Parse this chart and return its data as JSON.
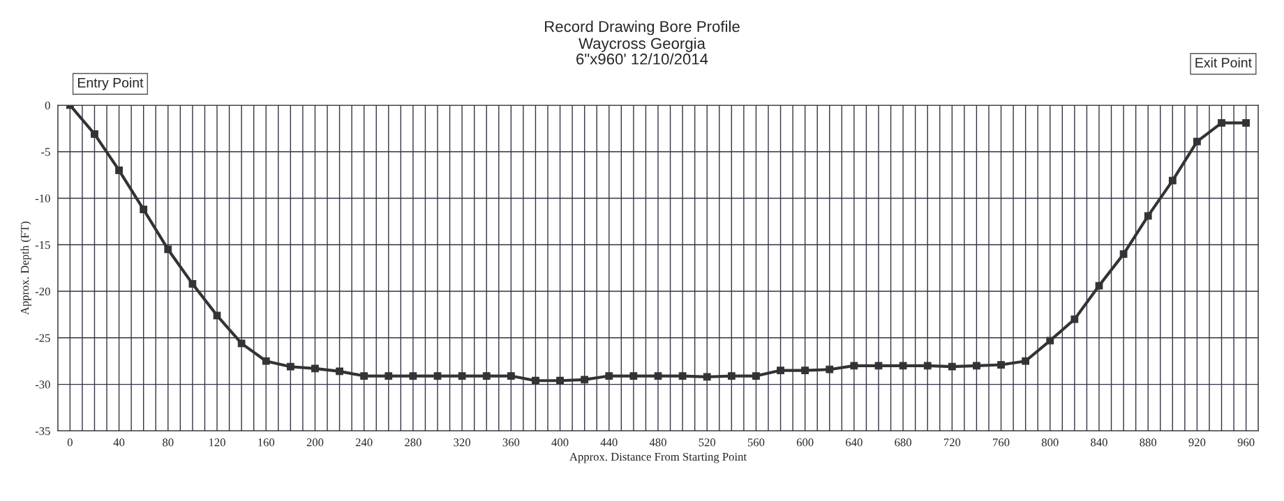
{
  "chart_data": {
    "type": "line",
    "title": "Record Drawing Bore Profile",
    "subtitle": "Waycross Georgia\n6\"x960' 12/10/2014",
    "xlabel": "Approx. Distance From Starting Point",
    "ylabel": "Approx. Depth (FT)",
    "annotations": [
      "Entry Point",
      "Exit Point"
    ],
    "x": [
      0,
      20,
      40,
      60,
      80,
      100,
      120,
      140,
      160,
      180,
      200,
      220,
      240,
      260,
      280,
      300,
      320,
      340,
      360,
      380,
      400,
      420,
      440,
      460,
      480,
      500,
      520,
      540,
      560,
      580,
      600,
      620,
      640,
      660,
      680,
      700,
      720,
      740,
      760,
      780,
      800,
      820,
      840,
      860,
      880,
      900,
      920,
      940,
      960
    ],
    "series": [
      {
        "color": "#333333",
        "values": [
          0,
          -3.1,
          -7,
          -11.2,
          -15.5,
          -19.2,
          -22.6,
          -25.6,
          -27.5,
          -28.1,
          -28.3,
          -28.6,
          -29.1,
          -29.1,
          -29.1,
          -29.1,
          -29.1,
          -29.1,
          -29.1,
          -29.6,
          -29.6,
          -29.5,
          -29.1,
          -29.1,
          -29.1,
          -29.1,
          -29.2,
          -29.1,
          -29.1,
          -28.5,
          -28.5,
          -28.4,
          -28,
          -28,
          -28,
          -28,
          -28.1,
          -28,
          -27.9,
          -27.5,
          -25.3,
          -23,
          -19.4,
          -16,
          -11.9,
          -8.1,
          -3.9,
          -1.9,
          -1.9
        ]
      }
    ],
    "xlim": [
      -10,
      970
    ],
    "ylim": [
      -35,
      0
    ],
    "xticks": [
      {
        "value": -10,
        "label": null
      },
      0,
      {
        "value": 10,
        "label": null
      },
      {
        "value": 20,
        "label": null
      },
      {
        "value": 30,
        "label": null
      },
      40,
      {
        "value": 50,
        "label": null
      },
      {
        "value": 60,
        "label": null
      },
      {
        "value": 70,
        "label": null
      },
      80,
      {
        "value": 90,
        "label": null
      },
      {
        "value": 100,
        "label": null
      },
      {
        "value": 110,
        "label": null
      },
      120,
      {
        "value": 130,
        "label": null
      },
      {
        "value": 140,
        "label": null
      },
      {
        "value": 150,
        "label": null
      },
      160,
      {
        "value": 170,
        "label": null
      },
      {
        "value": 180,
        "label": null
      },
      {
        "value": 190,
        "label": null
      },
      200,
      {
        "value": 210,
        "label": null
      },
      {
        "value": 220,
        "label": null
      },
      {
        "value": 230,
        "label": null
      },
      240,
      {
        "value": 250,
        "label": null
      },
      {
        "value": 260,
        "label": null
      },
      {
        "value": 270,
        "label": null
      },
      280,
      {
        "value": 290,
        "label": null
      },
      {
        "value": 300,
        "label": null
      },
      {
        "value": 310,
        "label": null
      },
      320,
      {
        "value": 330,
        "label": null
      },
      {
        "value": 340,
        "label": null
      },
      {
        "value": 350,
        "label": null
      },
      360,
      {
        "value": 370,
        "label": null
      },
      {
        "value": 380,
        "label": null
      },
      {
        "value": 390,
        "label": null
      },
      400,
      {
        "value": 410,
        "label": null
      },
      {
        "value": 420,
        "label": null
      },
      {
        "value": 430,
        "label": null
      },
      440,
      {
        "value": 450,
        "label": null
      },
      {
        "value": 460,
        "label": null
      },
      {
        "value": 470,
        "label": null
      },
      480,
      {
        "value": 490,
        "label": null
      },
      {
        "value": 500,
        "label": null
      },
      {
        "value": 510,
        "label": null
      },
      520,
      {
        "value": 530,
        "label": null
      },
      {
        "value": 540,
        "label": null
      },
      {
        "value": 550,
        "label": null
      },
      560,
      {
        "value": 570,
        "label": null
      },
      {
        "value": 580,
        "label": null
      },
      {
        "value": 590,
        "label": null
      },
      600,
      {
        "value": 610,
        "label": null
      },
      {
        "value": 620,
        "label": null
      },
      {
        "value": 630,
        "label": null
      },
      640,
      {
        "value": 650,
        "label": null
      },
      {
        "value": 660,
        "label": null
      },
      {
        "value": 670,
        "label": null
      },
      680,
      {
        "value": 690,
        "label": null
      },
      {
        "value": 700,
        "label": null
      },
      {
        "value": 710,
        "label": null
      },
      720,
      {
        "value": 730,
        "label": null
      },
      {
        "value": 740,
        "label": null
      },
      {
        "value": 750,
        "label": null
      },
      760,
      {
        "value": 770,
        "label": null
      },
      {
        "value": 780,
        "label": null
      },
      {
        "value": 790,
        "label": null
      },
      800,
      {
        "value": 810,
        "label": null
      },
      {
        "value": 820,
        "label": null
      },
      {
        "value": 830,
        "label": null
      },
      840,
      {
        "value": 850,
        "label": null
      },
      {
        "value": 860,
        "label": null
      },
      {
        "value": 870,
        "label": null
      },
      880,
      {
        "value": 890,
        "label": null
      },
      {
        "value": 900,
        "label": null
      },
      {
        "value": 910,
        "label": null
      },
      920,
      {
        "value": 930,
        "label": null
      },
      {
        "value": 940,
        "label": null
      },
      {
        "value": 950,
        "label": null
      },
      960,
      {
        "value": 970,
        "label": null
      }
    ],
    "yticks": [
      -35,
      -30,
      -25,
      -20,
      -15,
      -10,
      -5,
      0
    ],
    "grid": true,
    "legend": false,
    "marker": "square",
    "line_style": "solid"
  }
}
